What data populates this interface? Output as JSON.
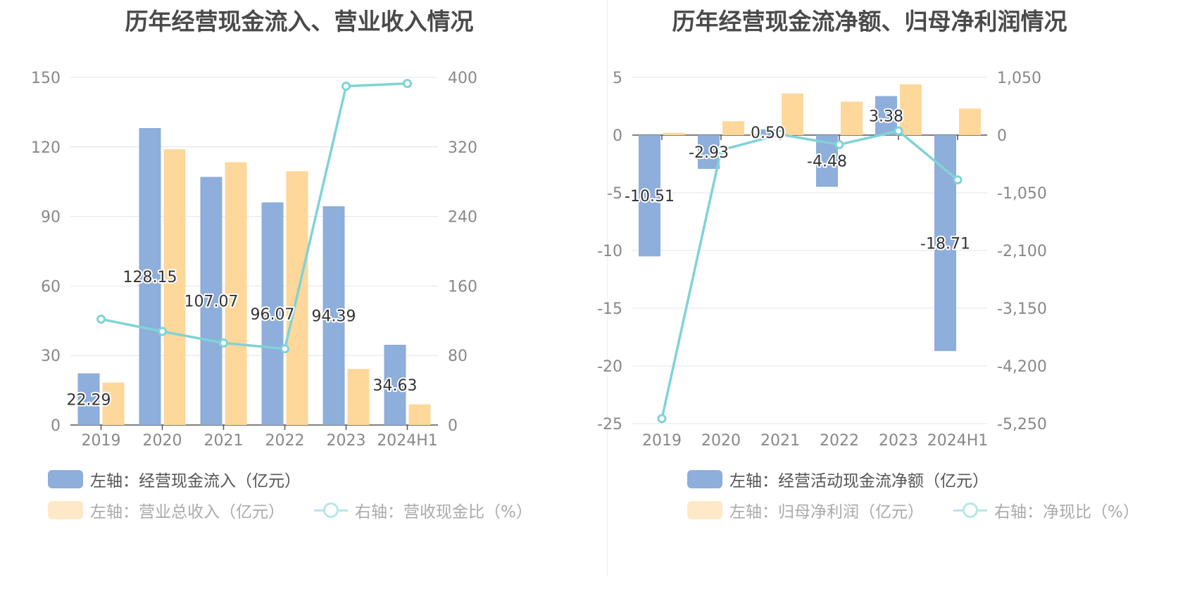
{
  "chart_data": [
    {
      "type": "bar",
      "title": "历年经营现金流入、营业收入情况",
      "categories": [
        "2019",
        "2020",
        "2021",
        "2022",
        "2023",
        "2024H1"
      ],
      "left_axis": {
        "ylim": [
          0,
          150
        ],
        "ticks": [
          "0",
          "30",
          "60",
          "90",
          "120",
          "150"
        ]
      },
      "right_axis": {
        "ylim": [
          0,
          400
        ],
        "ticks": [
          "0",
          "80",
          "160",
          "240",
          "320",
          "400"
        ]
      },
      "grid": true,
      "legend_position": "bottom",
      "series": [
        {
          "name": "左轴：经营现金流入（亿元）",
          "type": "bar",
          "axis": "left",
          "color": "#8eaedb",
          "values": [
            22.29,
            128.15,
            107.07,
            96.07,
            94.39,
            34.63
          ],
          "labels": [
            "22.29",
            "128.15",
            "107.07",
            "96.07",
            "94.39",
            "34.63"
          ]
        },
        {
          "name": "左轴：营业总收入（亿元）",
          "type": "bar",
          "axis": "left",
          "color": "#fdd89a",
          "values": [
            18.3,
            119.0,
            113.4,
            109.5,
            24.2,
            8.9
          ]
        },
        {
          "name": "右轴：营收现金比（%）",
          "type": "line",
          "axis": "right",
          "color": "#7fd3d6",
          "values": [
            121.8,
            107.7,
            94.4,
            87.7,
            389.9,
            393.0
          ]
        }
      ]
    },
    {
      "type": "bar",
      "title": "历年经营现金流净额、归母净利润情况",
      "categories": [
        "2019",
        "2020",
        "2021",
        "2022",
        "2023",
        "2024H1"
      ],
      "left_axis": {
        "ylim": [
          -25,
          5
        ],
        "ticks": [
          "-25",
          "-20",
          "-15",
          "-10",
          "-5",
          "0",
          "5"
        ]
      },
      "right_axis": {
        "ylim": [
          -5250,
          1050
        ],
        "ticks": [
          "-5,250",
          "-4,200",
          "-3,150",
          "-2,100",
          "-1,050",
          "0",
          "1,050"
        ]
      },
      "grid": true,
      "legend_position": "bottom",
      "series": [
        {
          "name": "左轴：经营活动现金流净额（亿元）",
          "type": "bar",
          "axis": "left",
          "color": "#8eaedb",
          "values": [
            -10.51,
            -2.93,
            0.5,
            -4.48,
            3.38,
            -18.71
          ],
          "labels": [
            "-10.51",
            "-2.93",
            "0.50",
            "-4.48",
            "3.38",
            "-18.71"
          ]
        },
        {
          "name": "左轴：归母净利润（亿元）",
          "type": "bar",
          "axis": "left",
          "color": "#fdd89a",
          "values": [
            0.2,
            1.2,
            3.6,
            2.9,
            4.4,
            2.3
          ]
        },
        {
          "name": "右轴：净现比（%）",
          "type": "line",
          "axis": "right",
          "color": "#7fd3d6",
          "values": [
            -5159,
            -273,
            12,
            -172,
            77,
            -814
          ]
        }
      ]
    }
  ]
}
